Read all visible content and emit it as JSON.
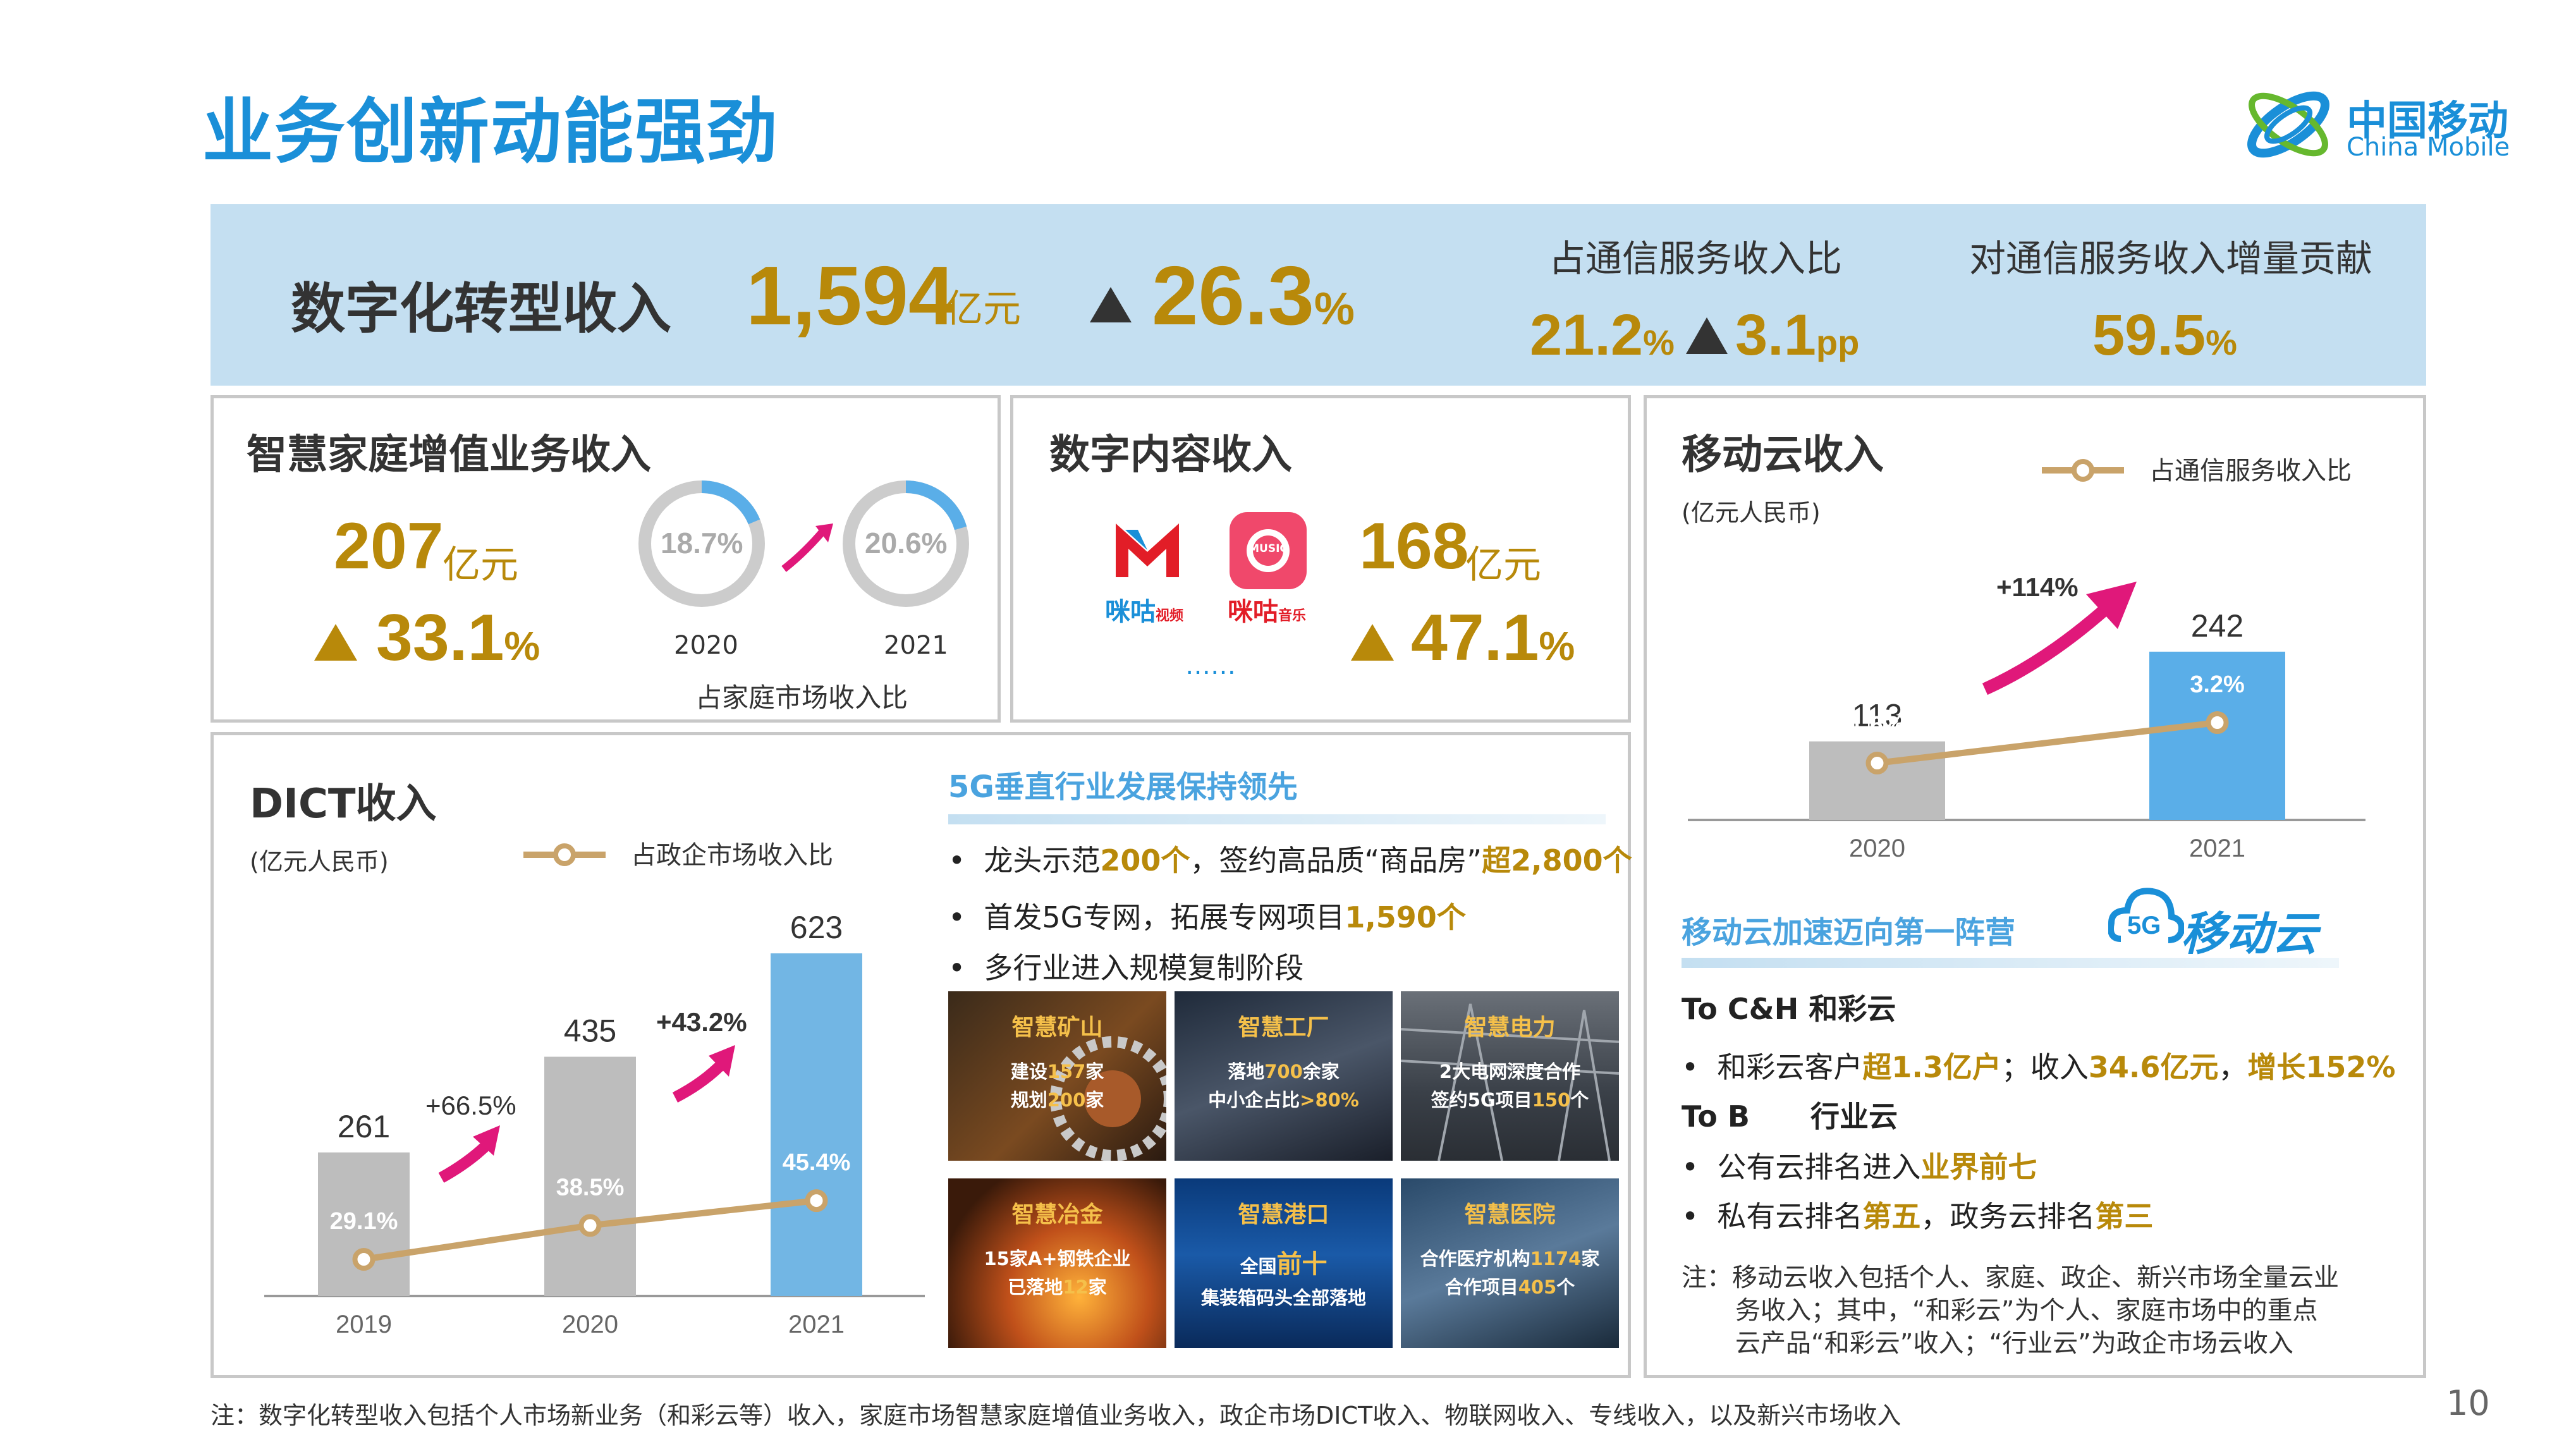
{
  "title": "业务创新动能强劲",
  "logo": {
    "cn": "中国移动",
    "en": "China Mobile"
  },
  "top": {
    "label": "数字化转型收入",
    "value": "1,594",
    "unit": "亿元",
    "growth": "26.3",
    "growth_unit": "%",
    "share_label": "占通信服务收入比",
    "share_value": "21.2",
    "share_value_unit": "%",
    "share_change": "3.1",
    "share_change_unit": "pp",
    "contrib_label": "对通信服务收入增量贡献",
    "contrib_value": "59.5",
    "contrib_unit": "%"
  },
  "home": {
    "title": "智慧家庭增值业务收入",
    "value": "207",
    "unit": "亿元",
    "growth": "33.1",
    "growth_unit": "%",
    "ring_2020": "18.7%",
    "ring_2021": "20.6%",
    "ring_2020_fraction": 0.187,
    "ring_2021_fraction": 0.206,
    "year_2020": "2020",
    "year_2021": "2021",
    "caption": "占家庭市场收入比"
  },
  "content": {
    "title": "数字内容收入",
    "value": "168",
    "unit": "亿元",
    "growth": "47.1",
    "growth_unit": "%",
    "app1_label": "咪咕",
    "app1_sub": "视频",
    "app2_label": "咪咕",
    "app2_sub": "音乐",
    "app2_icon": "MUSIC",
    "ellipsis": "……"
  },
  "cloud": {
    "title": "移动云收入",
    "unit_note": "(亿元人民币)",
    "legend": "占通信服务收入比",
    "growth": "+114%",
    "years": [
      "2020",
      "2021"
    ],
    "values": [
      "113",
      "242"
    ],
    "shares": [
      "1.6%",
      "3.2%"
    ],
    "subhead": "移动云加速迈向第一阵营",
    "brand": "移动云",
    "brand_badge": "5G",
    "sec1": "To C&H 和彩云",
    "b1_a": "和彩云客户",
    "b1_b": "超1.3亿户",
    "b1_c": "；收入",
    "b1_d": "34.6亿元",
    "b1_e": "，",
    "b1_f": "增长152%",
    "sec2": "To B      行业云",
    "b2_a": "公有云排名进入",
    "b2_b": "业界前七",
    "b3_a": "私有云排名",
    "b3_b": "第五",
    "b3_c": "，政务云排名",
    "b3_d": "第三",
    "note1": "注：移动云收入包括个人、家庭、政企、新兴市场全量云业",
    "note2": "务收入；其中，“和彩云”为个人、家庭市场中的重点",
    "note3": "云产品“和彩云”收入；“行业云”为政企市场云收入"
  },
  "dict": {
    "title": "DICT收入",
    "unit_note": "(亿元人民币)",
    "legend": "占政企市场收入比",
    "years": [
      "2019",
      "2020",
      "2021"
    ],
    "values": [
      "261",
      "435",
      "623"
    ],
    "shares": [
      "29.1%",
      "38.5%",
      "45.4%"
    ],
    "growth1": "+66.5%",
    "growth2": "+43.2%"
  },
  "g5": {
    "subhead": "5G垂直行业发展保持领先",
    "b1_a": "龙头示范",
    "b1_b": "200个",
    "b1_c": "，签约高品质“商品房”",
    "b1_d": "超2,800个",
    "b2_a": "首发5G专网，拓展专网项目",
    "b2_b": "1,590个",
    "b3": "多行业进入规模复制阶段",
    "tiles": [
      {
        "title": "智慧矿山",
        "l1a": "建设",
        "l1b": "157",
        "l1c": "家",
        "l2a": "规划",
        "l2b": "200",
        "l2c": "家"
      },
      {
        "title": "智慧工厂",
        "l1a": "落地",
        "l1b": "700",
        "l1c": "余家",
        "l2a": "中小企占比",
        "l2b": ">80%",
        "l2c": ""
      },
      {
        "title": "智慧电力",
        "l1a": "2大电网深度合作",
        "l1b": "",
        "l1c": "",
        "l2a": "签约5G项目",
        "l2b": "150",
        "l2c": "个"
      },
      {
        "title": "智慧冶金",
        "l1a": "15家A+钢铁企业",
        "l1b": "",
        "l1c": "",
        "l2a": "已落地",
        "l2b": "12",
        "l2c": "家"
      },
      {
        "title": "智慧港口",
        "l1a": "全国",
        "l1b": "前十",
        "l1c": "",
        "l2a": "集装箱码头全部落地",
        "l2b": "",
        "l2c": ""
      },
      {
        "title": "智慧医院",
        "l1a": "合作医疗机构",
        "l1b": "1174",
        "l1c": "家",
        "l2a": "合作项目",
        "l2b": "405",
        "l2c": "个"
      }
    ]
  },
  "footnote": "注：数字化转型收入包括个人市场新业务（和彩云等）收入，家庭市场智慧家庭增值业务收入，政企市场DICT收入、物联网收入、专线收入，以及新兴市场收入",
  "page_number": "10",
  "chart_data": [
    {
      "type": "bar",
      "title": "DICT收入",
      "ylabel": "(亿元人民币)",
      "categories": [
        "2019",
        "2020",
        "2021"
      ],
      "series": [
        {
          "name": "",
          "values": [
            261,
            435,
            623
          ]
        },
        {
          "name": "占政企市场收入比",
          "type": "line",
          "values": [
            29.1,
            38.5,
            45.4
          ]
        }
      ]
    },
    {
      "type": "bar",
      "title": "移动云收入",
      "ylabel": "(亿元人民币)",
      "categories": [
        "2020",
        "2021"
      ],
      "series": [
        {
          "name": "",
          "values": [
            113,
            242
          ]
        },
        {
          "name": "占通信服务收入比",
          "type": "line",
          "values": [
            1.6,
            3.2
          ]
        }
      ]
    }
  ]
}
